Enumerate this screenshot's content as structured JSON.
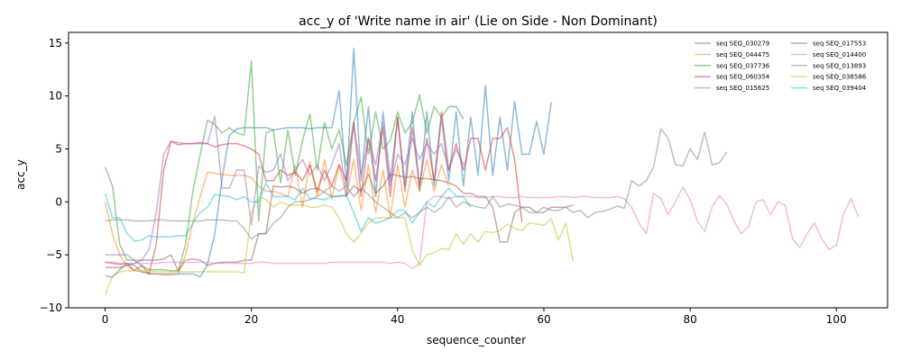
{
  "chart_data": {
    "type": "line",
    "title": "acc_y of 'Write name in air' (Lie on Side - Non Dominant)",
    "xlabel": "sequence_counter",
    "ylabel": "acc_y",
    "xlim": [
      -5,
      107
    ],
    "ylim": [
      -10,
      16
    ],
    "xticks": [
      0,
      20,
      40,
      60,
      80,
      100
    ],
    "yticks": [
      -10,
      -5,
      0,
      5,
      10,
      15
    ],
    "grid": false,
    "legend_position": "top-right",
    "legend_columns": 2,
    "series": [
      {
        "name": "seq SEQ_030279",
        "color": "#1f77b4",
        "y": [
          -7.0,
          -7.1,
          -6.4,
          -5.8,
          -6.0,
          -6.6,
          -6.8,
          -6.8,
          -6.8,
          -6.8,
          -6.8,
          -6.8,
          -6.8,
          -7.1,
          -5.9,
          -3.0,
          2.2,
          6.3,
          6.9,
          7.0,
          7.0,
          7.0,
          7.0,
          6.8,
          6.9,
          7.0,
          7.0,
          7.0,
          6.9,
          7.0,
          7.0,
          7.0,
          10.5,
          1.5,
          14.5,
          2.0,
          9.0,
          0.5,
          8.5,
          2.0,
          8.0,
          1.5,
          8.5,
          1.0,
          8.5,
          1.5,
          8.0,
          2.0,
          8.5,
          1.5,
          8.0,
          2.5,
          11.0,
          2.5,
          8.0,
          3.0,
          9.5,
          4.5,
          4.5,
          7.6,
          4.5,
          9.4
        ]
      },
      {
        "name": "seq SEQ_044475",
        "color": "#ff7f0e",
        "y": [
          0.0,
          -3.0,
          -5.0,
          -6.0,
          -6.5,
          -6.6,
          -6.7,
          -6.8,
          -6.9,
          -6.9,
          -6.8,
          -5.0,
          -2.0,
          0.5,
          2.8,
          2.7,
          2.6,
          2.5,
          2.5,
          2.5,
          2.3,
          1.5,
          1.0,
          1.0,
          0.8,
          0.5,
          3.5,
          -0.5,
          3.8,
          0.5,
          4.0,
          0.3,
          3.5,
          0.5,
          4.0,
          -0.8,
          3.5,
          -1.0,
          3.0,
          -1.5,
          3.5,
          -0.5,
          3.0,
          1.0,
          4.0,
          1.0,
          3.5,
          1.5
        ]
      },
      {
        "name": "seq SEQ_037736",
        "color": "#2ca02c",
        "y": [
          3.3,
          1.5,
          -4.0,
          -5.5,
          -5.5,
          -6.0,
          -6.4,
          -6.4,
          -6.4,
          -6.5,
          -6.5,
          -4.0,
          1.0,
          4.5,
          7.7,
          7.3,
          6.5,
          7.0,
          6.5,
          6.3,
          13.3,
          -1.8,
          6.5,
          6.8,
          1.8,
          6.8,
          2.5,
          5.8,
          8.3,
          3.0,
          7.5,
          5.0,
          6.8,
          3.5,
          7.5,
          9.9,
          4.5,
          8.5,
          5.0,
          5.8,
          8.5,
          6.5,
          7.5,
          10.1,
          6.5,
          9.0,
          8.0,
          9.0,
          9.0,
          7.8
        ]
      },
      {
        "name": "seq SEQ_060354",
        "color": "#d62728",
        "y": [
          -5.7,
          -5.8,
          -5.9,
          -5.8,
          -6.5,
          -6.0,
          -6.8,
          -4.0,
          3.0,
          5.7,
          5.4,
          5.5,
          5.5,
          5.6,
          5.5,
          5.2,
          5.4,
          5.5,
          5.5,
          5.3,
          5.0,
          4.5,
          2.0,
          2.0,
          3.0,
          2.5,
          2.8,
          2.0,
          3.5,
          1.0,
          3.0,
          1.5,
          3.5,
          2.0,
          7.5,
          0.5,
          6.0,
          2.0,
          7.0,
          0.5,
          8.0,
          1.0,
          7.0,
          1.5,
          6.0,
          2.0,
          8.5,
          3.0,
          5.5,
          3.0,
          6.0,
          6.0,
          3.0,
          6.0,
          6.0,
          7.0,
          4.0,
          -1.9
        ]
      },
      {
        "name": "seq SEQ_015625",
        "color": "#9467bd",
        "y": [
          -5.0,
          -5.0,
          -5.0,
          -5.0,
          -5.5,
          -5.5,
          -4.5,
          -1.0,
          4.5,
          5.7,
          5.6,
          5.5,
          5.5,
          5.5,
          5.5,
          8.1,
          1.3,
          1.3,
          3.0,
          3.0,
          -2.2,
          3.4,
          2.8,
          3.0,
          4.5,
          2.0,
          3.0,
          4.0,
          2.5,
          3.5,
          2.0,
          3.5,
          5.5,
          0.5,
          7.5,
          2.5,
          6.0,
          3.5,
          7.5,
          1.5,
          4.5,
          3.5,
          6.0,
          4.0,
          5.5,
          4.5,
          5.5,
          3.0,
          5.0,
          3.5
        ]
      },
      {
        "name": "seq SEQ_017553",
        "color": "#8c564b",
        "y": [
          -6.2,
          -6.2,
          -6.2,
          -6.0,
          -5.8,
          -5.5,
          -5.5,
          -5.5,
          -5.4,
          -5.0,
          -6.5,
          -5.5,
          -5.4,
          -5.5,
          -6.0,
          -5.8,
          -5.7,
          -5.7,
          -5.7,
          -5.5,
          -5.5,
          -3.0,
          -3.0,
          1.5,
          1.4,
          1.5,
          1.3,
          0.8,
          1.2,
          1.3,
          0.9,
          0.5,
          0.5,
          0.6,
          1.5,
          1.0,
          2.6,
          0.8,
          1.5,
          2.6,
          2.5,
          2.3,
          2.4,
          2.2,
          2.2,
          2.1,
          2.0,
          1.8,
          1.5,
          0.8,
          0.8,
          0.5,
          0.5,
          -0.5,
          -3.8,
          -3.8,
          -1.0,
          -0.5,
          -0.5,
          -1.0,
          -1.0,
          -0.5,
          -0.5,
          -0.5,
          -0.3
        ]
      },
      {
        "name": "seq SEQ_014400",
        "color": "#e377c2",
        "y": [
          -5.7,
          -5.7,
          -5.8,
          -5.8,
          -5.8,
          -5.8,
          -5.8,
          -5.8,
          -5.7,
          -5.7,
          -5.7,
          -5.7,
          -5.7,
          -5.7,
          -5.7,
          -5.8,
          -5.8,
          -5.8,
          -5.8,
          -5.8,
          -5.8,
          -5.7,
          -5.7,
          -5.8,
          -5.8,
          -5.8,
          -5.8,
          -5.8,
          -5.8,
          -5.8,
          -5.8,
          -5.7,
          -5.7,
          -5.7,
          -5.7,
          -5.7,
          -5.7,
          -5.7,
          -5.7,
          -5.8,
          -5.7,
          -5.8,
          -6.3,
          -5.8,
          0.0,
          0.5,
          0.5,
          0.3,
          0.5,
          0.5,
          0.5,
          0.4,
          0.4,
          0.5,
          0.5,
          0.4,
          0.4,
          0.5,
          0.4,
          0.4,
          0.4,
          0.4,
          0.5,
          0.5,
          0.4,
          0.5,
          0.5,
          0.4,
          0.4,
          0.4,
          0.5,
          0.3,
          -0.5,
          -2.0,
          -3.0,
          0.8,
          0.3,
          -1.2,
          0.0,
          1.4,
          0.2,
          -1.8,
          -2.8,
          -0.5,
          0.6,
          -0.2,
          -1.8,
          -3.0,
          -2.3,
          0.0,
          0.2,
          -1.2,
          0.0,
          -0.3,
          -3.5,
          -4.3,
          -3.0,
          -2.0,
          -3.5,
          -4.5,
          -4.1,
          -1.1,
          0.3,
          -1.4
        ]
      },
      {
        "name": "seq SEQ_013893",
        "color": "#7f7f7f",
        "y": [
          -1.8,
          -1.7,
          -1.7,
          -1.7,
          -1.8,
          -1.8,
          -1.8,
          -1.7,
          -1.7,
          -1.8,
          -1.8,
          -1.8,
          -1.8,
          -1.8,
          -1.7,
          -1.7,
          -1.7,
          -1.8,
          -1.8,
          -2.5,
          -3.5,
          -3.0,
          -3.0,
          -2.0,
          -1.5,
          -0.5,
          0.0,
          0.0,
          0.2,
          0.5,
          1.0,
          1.5,
          1.0,
          1.5,
          0.5,
          1.3,
          0.7,
          0.0,
          -0.5,
          -1.0,
          -1.5,
          -1.0,
          -1.5,
          -1.0,
          -0.5,
          -1.0,
          -0.5,
          0.5,
          -0.5,
          0.0,
          -0.3,
          -0.5,
          -0.6,
          0.5,
          -0.5,
          -0.2,
          -0.3,
          -0.5,
          -1.0,
          -1.0,
          -0.5,
          -0.8,
          -0.8,
          -0.5,
          -1.0,
          -0.8,
          -1.5,
          -1.0,
          -0.9,
          -0.7,
          -0.4,
          -0.6,
          2.0,
          1.5,
          2.0,
          3.3,
          6.9,
          6.0,
          3.5,
          3.4,
          5.0,
          4.0,
          6.6,
          3.5,
          3.7,
          4.7
        ]
      },
      {
        "name": "seq SEQ_038586",
        "color": "#bcbd22",
        "y": [
          -8.8,
          -7.0,
          -6.6,
          -6.5,
          -6.5,
          -6.5,
          -6.5,
          -6.6,
          -6.6,
          -6.6,
          -6.6,
          -6.6,
          -6.6,
          -6.6,
          -6.6,
          -6.6,
          -6.6,
          -6.6,
          -6.6,
          -6.7,
          -1.0,
          0.5,
          0.2,
          -0.5,
          0.0,
          -0.3,
          -0.3,
          -0.3,
          -0.5,
          -0.5,
          -0.3,
          -0.5,
          -1.5,
          -3.0,
          -3.8,
          -3.0,
          -2.0,
          -1.5,
          -1.5,
          -1.5,
          -1.5,
          -1.5,
          -4.5,
          -6.0,
          -5.0,
          -4.8,
          -4.4,
          -4.5,
          -3.0,
          -4.0,
          -3.0,
          -3.8,
          -2.8,
          -2.9,
          -2.7,
          -2.1,
          -2.5,
          -2.7,
          -2.0,
          -2.1,
          -2.2,
          -1.6,
          -3.6,
          -2.0,
          -5.6
        ]
      },
      {
        "name": "seq SEQ_039404",
        "color": "#17becf",
        "y": [
          0.8,
          -1.5,
          -1.5,
          -3.0,
          -3.7,
          -3.6,
          -3.2,
          -3.3,
          -3.3,
          -3.3,
          -3.2,
          -3.2,
          -2.0,
          -1.0,
          -0.5,
          0.7,
          0.6,
          0.5,
          0.2,
          0.5,
          0.0,
          0.0,
          1.8,
          0.5,
          0.5,
          0.5,
          0.2,
          1.3,
          0.3,
          0.3,
          0.2,
          0.5,
          0.6,
          0.6,
          -1.0,
          -2.8,
          -1.5,
          -2.0,
          -1.8,
          -1.5,
          -0.8,
          -0.8,
          -2.0,
          -1.0,
          0.0,
          -0.5,
          0.5,
          1.3,
          0.5,
          0.5,
          -0.5
        ]
      }
    ]
  }
}
